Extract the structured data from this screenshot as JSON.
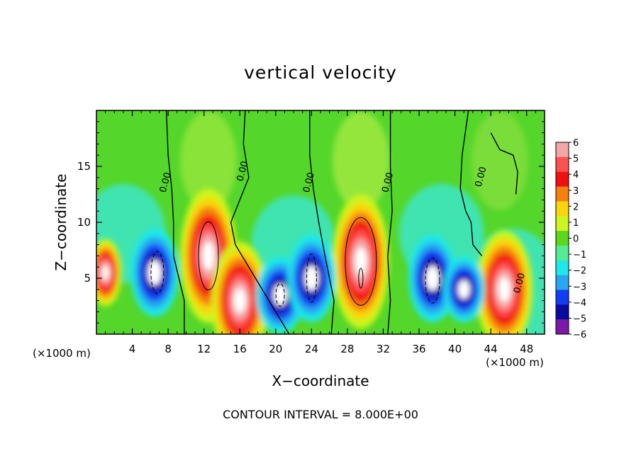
{
  "chart_data": {
    "type": "heatmap",
    "title": "vertical velocity",
    "xlabel": "X−coordinate",
    "ylabel": "Z−coordinate",
    "x_unit": "(×1000 m)",
    "xlim": [
      0,
      50
    ],
    "ylim": [
      0,
      20
    ],
    "x_ticks": [
      4,
      8,
      12,
      16,
      20,
      24,
      28,
      32,
      36,
      40,
      44,
      48
    ],
    "y_ticks": [
      5,
      10,
      15
    ],
    "colorbar": {
      "ticks": [
        6,
        5,
        4,
        3,
        2,
        1,
        0,
        -1,
        -2,
        -3,
        -4,
        -5,
        -6
      ],
      "colors": [
        "#f4a6a6",
        "#ff5050",
        "#f11010",
        "#f77f10",
        "#f9d50d",
        "#cdf51f",
        "#5bd81a",
        "#55eb93",
        "#1fe8ea",
        "#28a6f0",
        "#123df2",
        "#0a0aa0",
        "#7a1aa7"
      ]
    },
    "contour_labels": [
      "0.00",
      "0.00",
      "0.00",
      "0.00",
      "0.00",
      "0.00"
    ],
    "contour_interval_text": "CONTOUR INTERVAL = 8.000E+00",
    "updrafts": [
      {
        "x": 1.0,
        "z": 5.5,
        "peak": 4
      },
      {
        "x": 12.5,
        "z": 7.0,
        "peak": 8
      },
      {
        "x": 16.0,
        "z": 3.0,
        "peak": 7
      },
      {
        "x": 29.5,
        "z": 6.5,
        "peak": 8
      },
      {
        "x": 45.5,
        "z": 4.0,
        "peak": 7
      }
    ],
    "downdrafts": [
      {
        "x": 6.5,
        "z": 5.5,
        "peak": -8
      },
      {
        "x": 20.5,
        "z": 3.5,
        "peak": -7
      },
      {
        "x": 24.0,
        "z": 5.0,
        "peak": -8
      },
      {
        "x": 37.5,
        "z": 5.0,
        "peak": -8
      },
      {
        "x": 41.0,
        "z": 4.0,
        "peak": -6
      }
    ]
  },
  "footer": {
    "contour_interval": "CONTOUR INTERVAL = 8.000E+00"
  }
}
